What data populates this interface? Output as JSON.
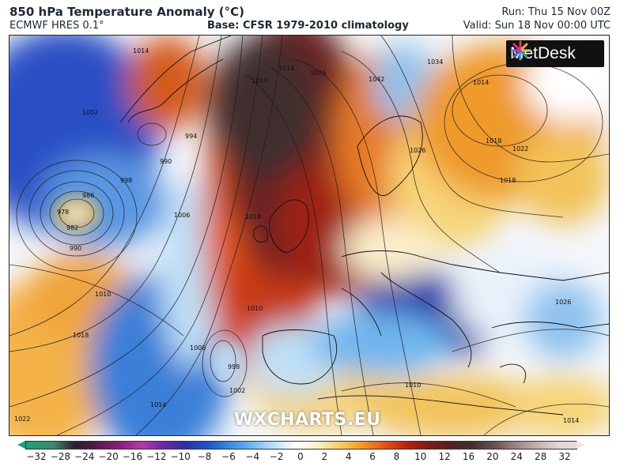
{
  "header": {
    "title": "850 hPa Temperature Anomaly (°C)",
    "model": "ECMWF HRES 0.1°",
    "base": "Base: CFSR 1979-2010 climatology",
    "run": "Run: Thu 15 Nov 00Z",
    "valid": "Valid: Sun 18 Nov 00:00 UTC"
  },
  "logo": {
    "text": "MetDesk"
  },
  "watermark": {
    "text": "WXCHARTS.EU"
  },
  "isobar_labels": [
    "1014",
    "1002",
    "994",
    "990",
    "998",
    "986",
    "978",
    "982",
    "990",
    "1006",
    "1010",
    "1018",
    "1022",
    "1018",
    "1014",
    "1006",
    "998",
    "1002",
    "1014",
    "1010",
    "1014",
    "1026",
    "1042",
    "1034",
    "1026",
    "1014",
    "1018",
    "1022",
    "1018",
    "1010",
    "1026",
    "1014"
  ],
  "colorbar": {
    "unit": "°C",
    "ticks": [
      "−32",
      "−28",
      "−24",
      "−20",
      "−16",
      "−12",
      "−10",
      "−8",
      "−6",
      "−4",
      "−2",
      "0",
      "2",
      "4",
      "6",
      "8",
      "10",
      "12",
      "16",
      "20",
      "24",
      "28",
      "32"
    ]
  },
  "colors": {
    "cold": "#1d55c8",
    "warm": "#e4561a",
    "extreme_warm": "#55211e",
    "neutral": "#ffffff"
  }
}
